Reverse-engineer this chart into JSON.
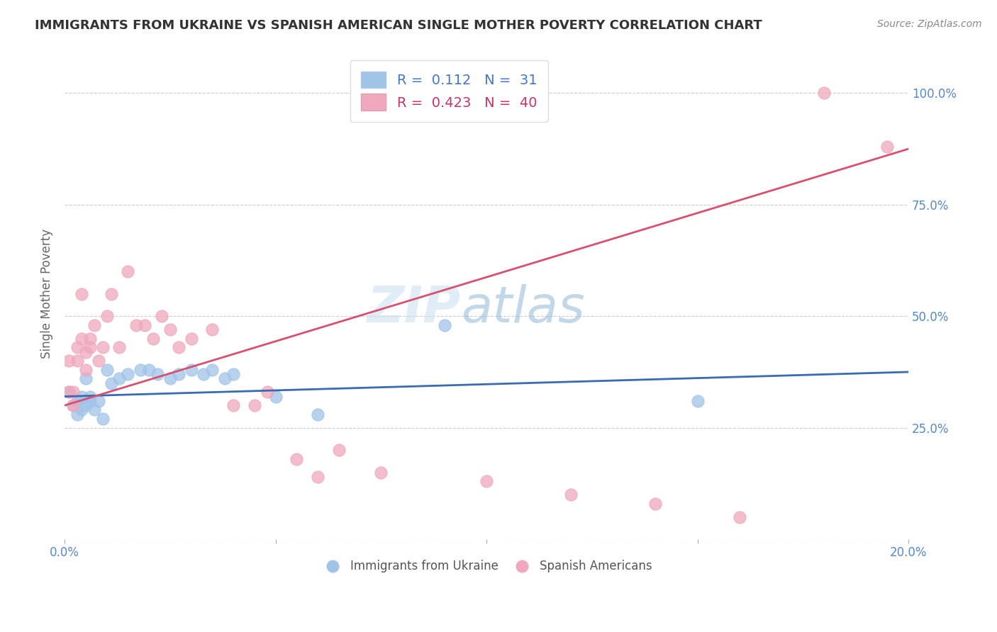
{
  "title": "IMMIGRANTS FROM UKRAINE VS SPANISH AMERICAN SINGLE MOTHER POVERTY CORRELATION CHART",
  "source": "Source: ZipAtlas.com",
  "xlabel": "",
  "ylabel": "Single Mother Poverty",
  "xlim": [
    0.0,
    0.2
  ],
  "ylim": [
    0.0,
    1.1
  ],
  "yticks": [
    0.0,
    0.25,
    0.5,
    0.75,
    1.0
  ],
  "ytick_labels": [
    "",
    "25.0%",
    "50.0%",
    "75.0%",
    "100.0%"
  ],
  "xticks": [
    0.0,
    0.05,
    0.1,
    0.15,
    0.2
  ],
  "xtick_labels": [
    "0.0%",
    "",
    "",
    "",
    "20.0%"
  ],
  "legend_entries": [
    {
      "label": "Immigrants from Ukraine",
      "color": "#a8c8f0",
      "R": "0.112",
      "N": "31"
    },
    {
      "label": "Spanish Americans",
      "color": "#f4a0b0",
      "R": "0.423",
      "N": "40"
    }
  ],
  "blue_scatter_x": [
    0.001,
    0.002,
    0.003,
    0.003,
    0.004,
    0.004,
    0.005,
    0.005,
    0.006,
    0.006,
    0.007,
    0.008,
    0.009,
    0.01,
    0.011,
    0.013,
    0.015,
    0.018,
    0.02,
    0.022,
    0.025,
    0.027,
    0.03,
    0.033,
    0.035,
    0.038,
    0.04,
    0.05,
    0.06,
    0.09,
    0.15
  ],
  "blue_scatter_y": [
    0.33,
    0.3,
    0.31,
    0.28,
    0.32,
    0.29,
    0.3,
    0.36,
    0.32,
    0.31,
    0.29,
    0.31,
    0.27,
    0.38,
    0.35,
    0.36,
    0.37,
    0.38,
    0.38,
    0.37,
    0.36,
    0.37,
    0.38,
    0.37,
    0.38,
    0.36,
    0.37,
    0.32,
    0.28,
    0.48,
    0.31
  ],
  "pink_scatter_x": [
    0.001,
    0.001,
    0.002,
    0.002,
    0.003,
    0.003,
    0.004,
    0.004,
    0.005,
    0.005,
    0.006,
    0.006,
    0.007,
    0.008,
    0.009,
    0.01,
    0.011,
    0.013,
    0.015,
    0.017,
    0.019,
    0.021,
    0.023,
    0.025,
    0.027,
    0.03,
    0.035,
    0.04,
    0.045,
    0.048,
    0.055,
    0.06,
    0.065,
    0.075,
    0.1,
    0.12,
    0.14,
    0.16,
    0.18,
    0.195
  ],
  "pink_scatter_y": [
    0.33,
    0.4,
    0.33,
    0.3,
    0.43,
    0.4,
    0.55,
    0.45,
    0.42,
    0.38,
    0.43,
    0.45,
    0.48,
    0.4,
    0.43,
    0.5,
    0.55,
    0.43,
    0.6,
    0.48,
    0.48,
    0.45,
    0.5,
    0.47,
    0.43,
    0.45,
    0.47,
    0.3,
    0.3,
    0.33,
    0.18,
    0.14,
    0.2,
    0.15,
    0.13,
    0.1,
    0.08,
    0.05,
    1.0,
    0.88
  ],
  "blue_line_x": [
    0.0,
    0.2
  ],
  "blue_line_y": [
    0.32,
    0.375
  ],
  "pink_line_x": [
    0.0,
    0.2
  ],
  "pink_line_y": [
    0.3,
    0.875
  ],
  "watermark_zip": "ZIP",
  "watermark_atlas": "atlas",
  "bg_color": "#ffffff",
  "grid_color": "#cccccc",
  "blue_color": "#a0c4e8",
  "pink_color": "#f0a8bc",
  "blue_line_color": "#3a6ab0",
  "pink_line_color": "#d85070",
  "title_color": "#333333",
  "axis_label_color": "#5588cc",
  "right_tick_color": "#5588cc"
}
